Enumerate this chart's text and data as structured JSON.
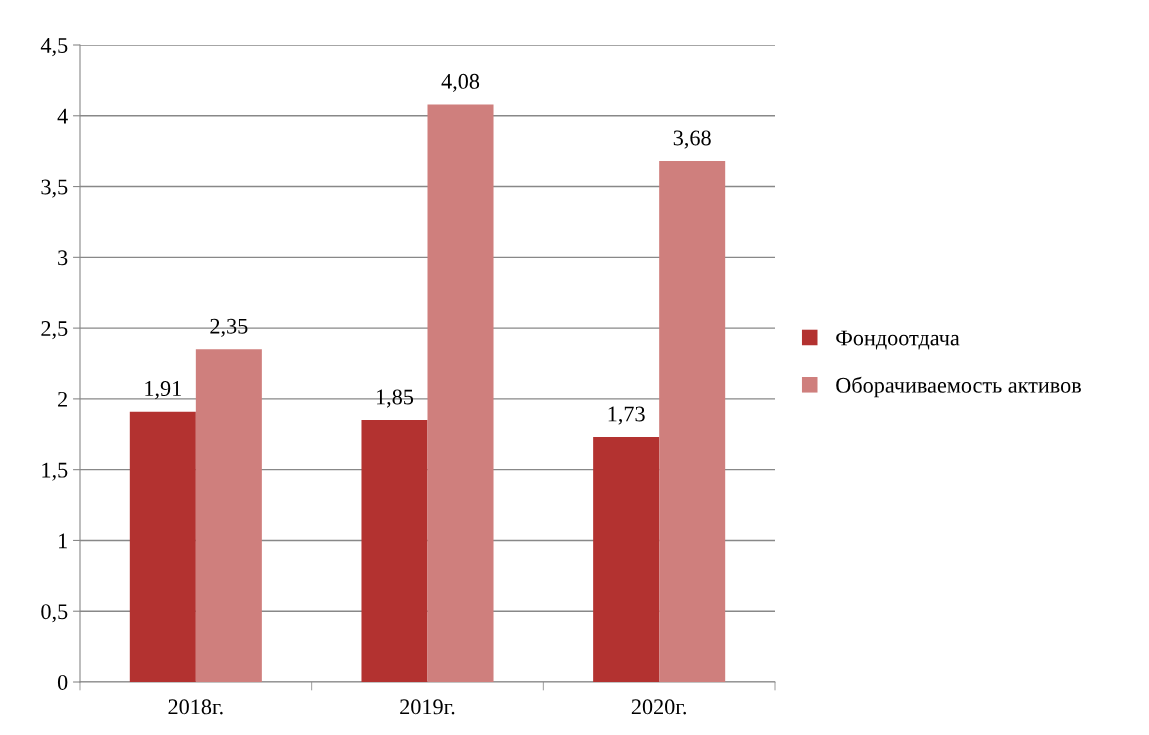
{
  "chart_data": {
    "type": "bar",
    "categories": [
      "2018г.",
      "2019г.",
      "2020г."
    ],
    "series": [
      {
        "name": "Фондоотдача",
        "color": "#b33230",
        "values": [
          1.91,
          1.85,
          1.73
        ],
        "value_labels": [
          "1,91",
          "1,85",
          "1,73"
        ]
      },
      {
        "name": "Оборачиваемость активов",
        "color": "#cf7f7d",
        "values": [
          2.35,
          4.08,
          3.68
        ],
        "value_labels": [
          "2,35",
          "4,08",
          "3,68"
        ]
      }
    ],
    "ylim": [
      0,
      4.5
    ],
    "yticks": [
      0,
      {
        "value": 0.5,
        "label": "0,5"
      },
      1,
      {
        "value": 1.5,
        "label": "1,5"
      },
      2,
      {
        "value": 2.5,
        "label": "2,5"
      },
      3,
      {
        "value": 3.5,
        "label": "3,5"
      },
      4,
      {
        "value": 4.5,
        "label": "4,5"
      }
    ],
    "grid": "y",
    "legend": "right"
  }
}
